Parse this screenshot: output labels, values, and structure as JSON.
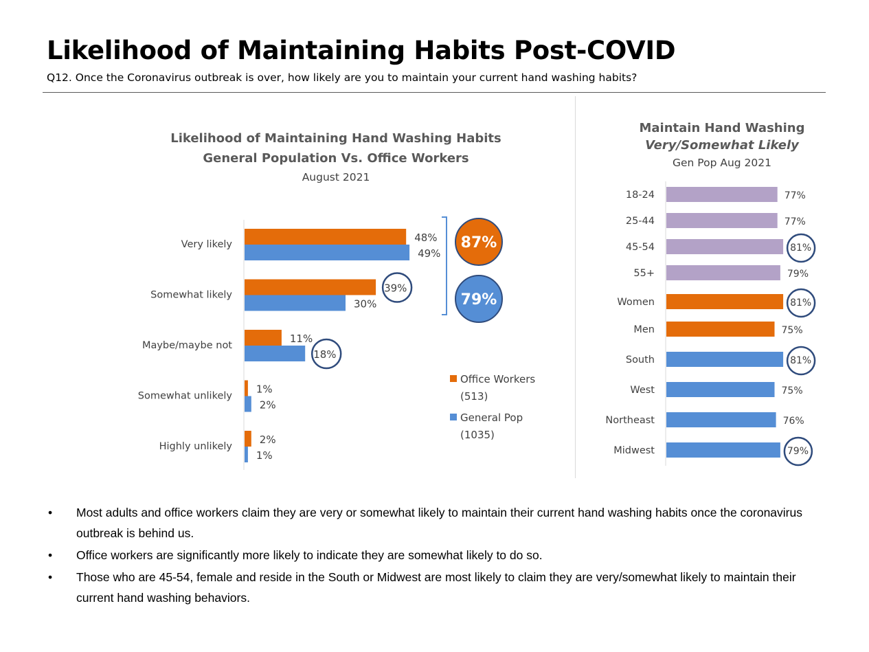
{
  "page": {
    "title": "Likelihood of Maintaining Habits Post-COVID",
    "subtitle": "Q12. Once the Coronavirus outbreak is over, how likely are you to maintain your current hand washing habits?"
  },
  "chart_data": [
    {
      "type": "bar",
      "orientation": "horizontal",
      "title": "Likelihood of Maintaining Hand Washing Habits",
      "title_line2": "General Population Vs. Office Workers",
      "subtitle": "August 2021",
      "categories": [
        "Very likely",
        "Somewhat likely",
        "Maybe/maybe not",
        "Somewhat unlikely",
        "Highly unlikely"
      ],
      "series": [
        {
          "name": "Office Workers",
          "sample": "(513)",
          "color": "#e46c0a",
          "values": [
            48,
            39,
            11,
            1,
            2
          ],
          "labels": [
            "48%",
            "39%",
            "11%",
            "1%",
            "2%"
          ]
        },
        {
          "name": "General Pop",
          "sample": "(1035)",
          "color": "#558ed5",
          "values": [
            49,
            30,
            18,
            2,
            1
          ],
          "labels": [
            "49%",
            "30%",
            "18%",
            "2%",
            "1%"
          ]
        }
      ],
      "circled": [
        {
          "series": 0,
          "index": 1
        },
        {
          "series": 1,
          "index": 2
        }
      ],
      "summary_bubbles": [
        {
          "label": "87%",
          "value": 87,
          "color": "#e46c0a"
        },
        {
          "label": "79%",
          "value": 79,
          "color": "#558ed5"
        }
      ],
      "xlim": [
        0,
        60
      ],
      "legend": "right",
      "grid": false
    },
    {
      "type": "bar",
      "orientation": "horizontal",
      "title": "Maintain Hand Washing",
      "title_line2": "Very/Somewhat Likely",
      "subtitle": "Gen Pop Aug 2021",
      "categories": [
        "18-24",
        "25-44",
        "45-54",
        "55+",
        "Women",
        "Men",
        "South",
        "West",
        "Northeast",
        "Midwest"
      ],
      "values": [
        77,
        77,
        81,
        79,
        81,
        75,
        81,
        75,
        76,
        79
      ],
      "labels": [
        "77%",
        "77%",
        "81%",
        "79%",
        "81%",
        "75%",
        "81%",
        "75%",
        "76%",
        "79%"
      ],
      "colors": [
        "#b3a2c7",
        "#b3a2c7",
        "#b3a2c7",
        "#b3a2c7",
        "#e46c0a",
        "#e46c0a",
        "#558ed5",
        "#558ed5",
        "#558ed5",
        "#558ed5"
      ],
      "circled": [
        2,
        4,
        6,
        9
      ],
      "xlim": [
        0,
        100
      ],
      "grid": false
    }
  ],
  "bullets": [
    "Most adults and office workers claim they are very or somewhat likely to maintain their current hand washing habits once the coronavirus outbreak is behind us.",
    "Office workers are significantly more likely to indicate they are somewhat likely to do so.",
    "Those who are 45-54, female and reside in the South or Midwest are most likely to claim they are very/somewhat likely to maintain their current hand washing behaviors."
  ],
  "bullet_glyph": "•",
  "colors": {
    "office": "#e46c0a",
    "genpop": "#558ed5",
    "age": "#b3a2c7",
    "circle": "#2f4b7c",
    "text": "#404040"
  }
}
